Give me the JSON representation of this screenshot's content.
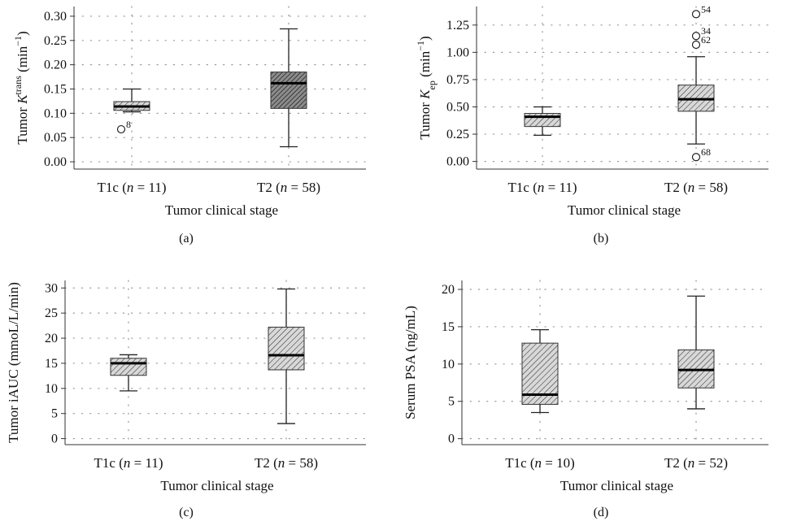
{
  "chart_data": [
    {
      "type": "box",
      "panel_label": "(a)",
      "ylabel": {
        "prefix": "Tumor ",
        "italic": "K",
        "sup": "trans",
        "suffix": " (min",
        "unit_sup": "−1",
        "close": ")"
      },
      "xlabel": "Tumor clinical stage",
      "ylim": [
        -0.015,
        0.32
      ],
      "yticks": [
        0.0,
        0.05,
        0.1,
        0.15,
        0.2,
        0.25,
        0.3
      ],
      "ytick_labels": [
        "0.00",
        "0.05",
        "0.10",
        "0.15",
        "0.20",
        "0.25",
        "0.30"
      ],
      "grid": true,
      "categories": [
        {
          "name": "T1c",
          "n": "11",
          "style": "light",
          "whisker_low": 0.103,
          "q1": 0.106,
          "median": 0.114,
          "q3": 0.124,
          "whisker_high": 0.15,
          "outliers": [
            {
              "value": 0.067,
              "label": "8"
            }
          ]
        },
        {
          "name": "T2",
          "n": "58",
          "style": "dark",
          "whisker_low": 0.031,
          "q1": 0.11,
          "median": 0.162,
          "q3": 0.185,
          "whisker_high": 0.274,
          "outliers": []
        }
      ]
    },
    {
      "type": "box",
      "panel_label": "(b)",
      "ylabel": {
        "prefix": "Tumor ",
        "italic": "K",
        "sub": "ep",
        "suffix": " (min",
        "unit_sup": "−1",
        "close": ")"
      },
      "xlabel": "Tumor clinical stage",
      "ylim": [
        -0.07,
        1.42
      ],
      "yticks": [
        0.0,
        0.25,
        0.5,
        0.75,
        1.0,
        1.25
      ],
      "ytick_labels": [
        "0.00",
        "0.25",
        "0.50",
        "0.75",
        "1.00",
        "1.25"
      ],
      "grid": true,
      "categories": [
        {
          "name": "T1c",
          "n": "11",
          "style": "light",
          "whisker_low": 0.24,
          "q1": 0.32,
          "median": 0.41,
          "q3": 0.44,
          "whisker_high": 0.5,
          "outliers": []
        },
        {
          "name": "T2",
          "n": "58",
          "style": "light",
          "whisker_low": 0.16,
          "q1": 0.46,
          "median": 0.57,
          "q3": 0.7,
          "whisker_high": 0.96,
          "outliers": [
            {
              "value": 1.35,
              "label": "54"
            },
            {
              "value": 1.15,
              "label": "34"
            },
            {
              "value": 1.07,
              "label": "62"
            },
            {
              "value": 0.04,
              "label": "68"
            }
          ]
        }
      ]
    },
    {
      "type": "box",
      "panel_label": "(c)",
      "ylabel": {
        "prefix": "Tumor iAUC (mmoL/L/min)"
      },
      "xlabel": "Tumor clinical stage",
      "ylim": [
        -1.2,
        31.5
      ],
      "yticks": [
        0,
        5,
        10,
        15,
        20,
        25,
        30
      ],
      "ytick_labels": [
        "0",
        "5",
        "10",
        "15",
        "20",
        "25",
        "30"
      ],
      "grid": true,
      "categories": [
        {
          "name": "T1c",
          "n": "11",
          "style": "light",
          "whisker_low": 9.5,
          "q1": 12.6,
          "median": 15.0,
          "q3": 16.0,
          "whisker_high": 16.7,
          "outliers": []
        },
        {
          "name": "T2",
          "n": "58",
          "style": "light",
          "whisker_low": 3.0,
          "q1": 13.7,
          "median": 16.6,
          "q3": 22.2,
          "whisker_high": 29.8,
          "outliers": []
        }
      ]
    },
    {
      "type": "box",
      "panel_label": "(d)",
      "ylabel": {
        "prefix": "Serum PSA (ng/mL)"
      },
      "xlabel": "Tumor clinical stage",
      "ylim": [
        -0.8,
        21.2
      ],
      "yticks": [
        0,
        5,
        10,
        15,
        20
      ],
      "ytick_labels": [
        "0",
        "5",
        "10",
        "15",
        "20"
      ],
      "grid": true,
      "categories": [
        {
          "name": "T1c",
          "n": "10",
          "style": "light",
          "whisker_low": 3.5,
          "q1": 4.6,
          "median": 5.9,
          "q3": 12.8,
          "whisker_high": 14.6,
          "outliers": []
        },
        {
          "name": "T2",
          "n": "52",
          "style": "light",
          "whisker_low": 4.0,
          "q1": 6.8,
          "median": 9.2,
          "q3": 11.9,
          "whisker_high": 19.1,
          "outliers": []
        }
      ]
    }
  ],
  "styles": {
    "light_fill": "#d8d8d8",
    "dark_fill": "#8c8c8c",
    "hatch_stroke": "#222222",
    "line": "#222222",
    "grid": "#9a9a9a"
  }
}
